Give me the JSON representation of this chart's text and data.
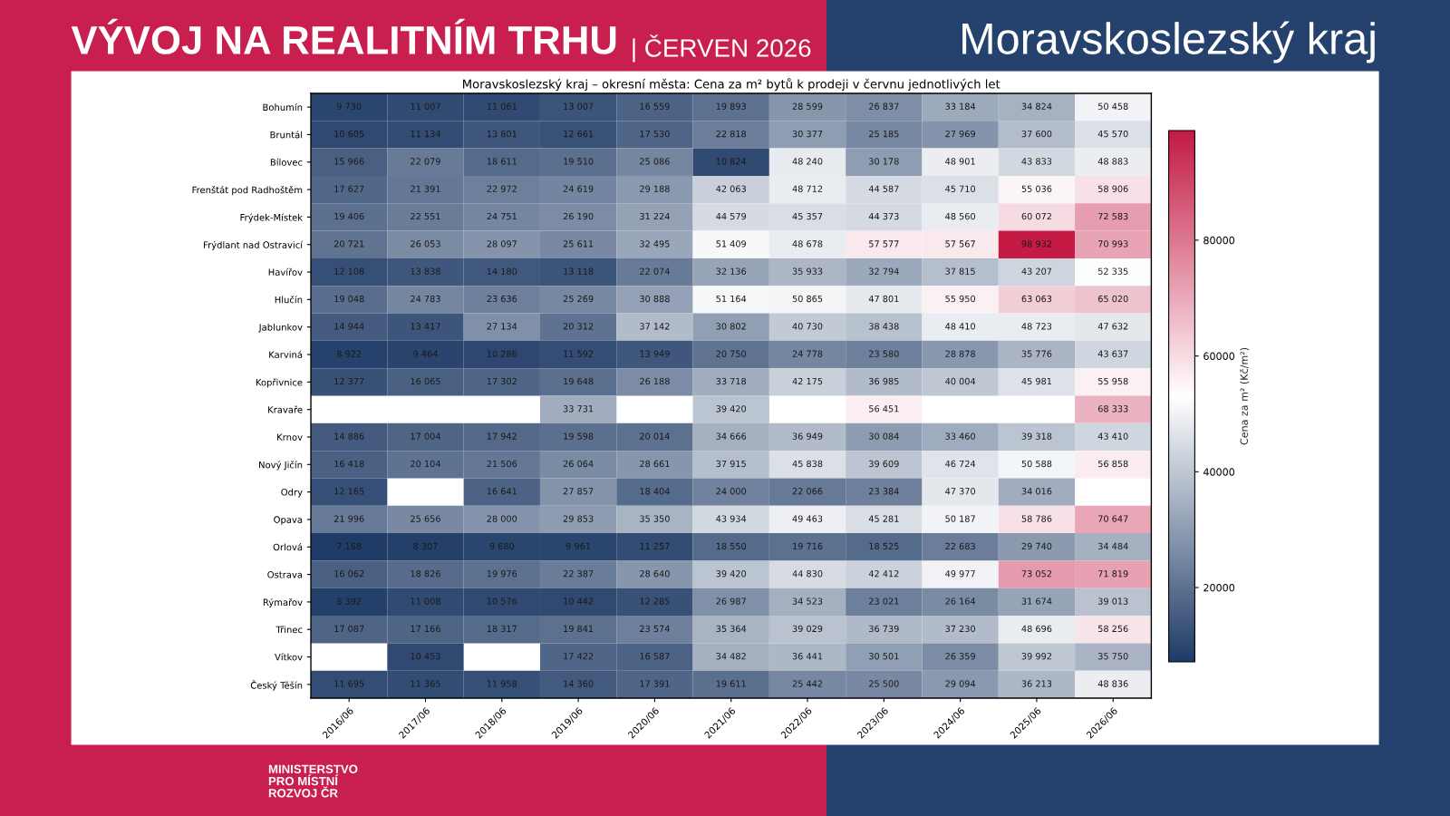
{
  "chart_data": {
    "type": "heatmap",
    "title": "Moravskoslezský kraj – okresní města: Cena za m² bytů k prodeji v červnu jednotlivých let",
    "clabel": "Cena za m² (Kč/m²)",
    "categories": [
      "2016/06",
      "2017/06",
      "2018/06",
      "2019/06",
      "2020/06",
      "2021/06",
      "2022/06",
      "2023/06",
      "2024/06",
      "2025/06",
      "2026/06"
    ],
    "y_categories": [
      "Bohumín",
      "Bruntál",
      "Bílovec",
      "Frenštát pod Radhoštěm",
      "Frýdek-Místek",
      "Frýdlant nad Ostravicí",
      "Havířov",
      "Hlučín",
      "Jablunkov",
      "Karviná",
      "Kopřivnice",
      "Kravaře",
      "Krnov",
      "Nový Jičín",
      "Odry",
      "Opava",
      "Orlová",
      "Ostrava",
      "Rýmařov",
      "Třinec",
      "Vítkov",
      "Český Těšín"
    ],
    "cells": [
      [
        9730,
        11007,
        11061,
        13007,
        16559,
        19893,
        28599,
        26837,
        33184,
        34824,
        50458
      ],
      [
        10605,
        11134,
        13801,
        12661,
        17530,
        22818,
        30377,
        25185,
        27969,
        37600,
        45570
      ],
      [
        15966,
        22079,
        18611,
        19510,
        25086,
        10824,
        48240,
        30178,
        48901,
        43833,
        48883
      ],
      [
        17627,
        21391,
        22972,
        24619,
        29188,
        42063,
        48712,
        44587,
        45710,
        55036,
        58906
      ],
      [
        19406,
        22551,
        24751,
        26190,
        31224,
        44579,
        45357,
        44373,
        48560,
        60072,
        72583
      ],
      [
        20721,
        26053,
        28097,
        25611,
        32495,
        51409,
        48678,
        57577,
        57567,
        98932,
        70993
      ],
      [
        12108,
        13838,
        14180,
        13118,
        22074,
        32136,
        35933,
        32794,
        37815,
        43207,
        52335
      ],
      [
        19048,
        24783,
        23636,
        25269,
        30888,
        51164,
        50865,
        47801,
        55950,
        63063,
        65020
      ],
      [
        14944,
        13417,
        27134,
        20312,
        37142,
        30802,
        40730,
        38438,
        48410,
        48723,
        47632
      ],
      [
        8922,
        9464,
        10286,
        11592,
        13949,
        20750,
        24778,
        23580,
        28878,
        35776,
        43637
      ],
      [
        12377,
        16065,
        17302,
        19648,
        26188,
        33718,
        42175,
        36985,
        40004,
        45981,
        55958
      ],
      [
        null,
        null,
        null,
        33731,
        null,
        39420,
        null,
        56451,
        null,
        null,
        68333
      ],
      [
        14886,
        17004,
        17942,
        19598,
        20014,
        34666,
        36949,
        30084,
        33460,
        39318,
        43410
      ],
      [
        16418,
        20104,
        21506,
        26064,
        28661,
        37915,
        45838,
        39609,
        46724,
        50588,
        56858
      ],
      [
        12165,
        null,
        16641,
        27857,
        18404,
        24000,
        22066,
        23384,
        47370,
        34016,
        null
      ],
      [
        21996,
        25656,
        28000,
        29853,
        35350,
        43934,
        49463,
        45281,
        50187,
        58786,
        70647
      ],
      [
        7168,
        8307,
        9680,
        9961,
        11257,
        18550,
        19716,
        18525,
        22683,
        29740,
        34484
      ],
      [
        16062,
        18826,
        19976,
        22387,
        28640,
        39420,
        44830,
        42412,
        49977,
        73052,
        71819
      ],
      [
        8392,
        11008,
        10576,
        10442,
        12285,
        26987,
        34523,
        23021,
        26164,
        31674,
        39013
      ],
      [
        17087,
        17166,
        18317,
        19841,
        23574,
        35364,
        39029,
        36739,
        37230,
        48696,
        58256
      ],
      [
        null,
        10453,
        null,
        17422,
        16587,
        34482,
        36441,
        30501,
        26359,
        39992,
        35750
      ],
      [
        11695,
        11365,
        11958,
        14360,
        17391,
        19611,
        25442,
        25500,
        29094,
        36213,
        48836
      ]
    ],
    "cell_labels": [
      [
        "9 730",
        "11 007",
        "11 061",
        "13 007",
        "16 559",
        "19 893",
        "28 599",
        "26 837",
        "33 184",
        "34 824",
        "50 458"
      ],
      [
        "10 605",
        "11 134",
        "13 801",
        "12 661",
        "17 530",
        "22 818",
        "30 377",
        "25 185",
        "27 969",
        "37 600",
        "45 570"
      ],
      [
        "15 966",
        "22 079",
        "18 611",
        "19 510",
        "25 086",
        "10 824",
        "48 240",
        "30 178",
        "48 901",
        "43 833",
        "48 883"
      ],
      [
        "17 627",
        "21 391",
        "22 972",
        "24 619",
        "29 188",
        "42 063",
        "48 712",
        "44 587",
        "45 710",
        "55 036",
        "58 906"
      ],
      [
        "19 406",
        "22 551",
        "24 751",
        "26 190",
        "31 224",
        "44 579",
        "45 357",
        "44 373",
        "48 560",
        "60 072",
        "72 583"
      ],
      [
        "20 721",
        "26 053",
        "28 097",
        "25 611",
        "32 495",
        "51 409",
        "48 678",
        "57 577",
        "57 567",
        "98 932",
        "70 993"
      ],
      [
        "12 108",
        "13 838",
        "14 180",
        "13 118",
        "22 074",
        "32 136",
        "35 933",
        "32 794",
        "37 815",
        "43 207",
        "52 335"
      ],
      [
        "19 048",
        "24 783",
        "23 636",
        "25 269",
        "30 888",
        "51 164",
        "50 865",
        "47 801",
        "55 950",
        "63 063",
        "65 020"
      ],
      [
        "14 944",
        "13 417",
        "27 134",
        "20 312",
        "37 142",
        "30 802",
        "40 730",
        "38 438",
        "48 410",
        "48 723",
        "47 632"
      ],
      [
        "8 922",
        "9 464",
        "10 286",
        "11 592",
        "13 949",
        "20 750",
        "24 778",
        "23 580",
        "28 878",
        "35 776",
        "43 637"
      ],
      [
        "12 377",
        "16 065",
        "17 302",
        "19 648",
        "26 188",
        "33 718",
        "42 175",
        "36 985",
        "40 004",
        "45 981",
        "55 958"
      ],
      [
        null,
        null,
        null,
        "33 731",
        null,
        "39 420",
        null,
        "56 451",
        null,
        null,
        "68 333"
      ],
      [
        "14 886",
        "17 004",
        "17 942",
        "19 598",
        "20 014",
        "34 666",
        "36 949",
        "30 084",
        "33 460",
        "39 318",
        "43 410"
      ],
      [
        "16 418",
        "20 104",
        "21 506",
        "26 064",
        "28 661",
        "37 915",
        "45 838",
        "39 609",
        "46 724",
        "50 588",
        "56 858"
      ],
      [
        "12 165",
        null,
        "16 641",
        "27 857",
        "18 404",
        "24 000",
        "22 066",
        "23 384",
        "47 370",
        "34 016",
        null
      ],
      [
        "21 996",
        "25 656",
        "28 000",
        "29 853",
        "35 350",
        "43 934",
        "49 463",
        "45 281",
        "50 187",
        "58 786",
        "70 647"
      ],
      [
        "7 168",
        "8 307",
        "9 680",
        "9 961",
        "11 257",
        "18 550",
        "19 716",
        "18 525",
        "22 683",
        "29 740",
        "34 484"
      ],
      [
        "16 062",
        "18 826",
        "19 976",
        "22 387",
        "28 640",
        "39 420",
        "44 830",
        "42 412",
        "49 977",
        "73 052",
        "71 819"
      ],
      [
        "8 392",
        "11 008",
        "10 576",
        "10 442",
        "12 285",
        "26 987",
        "34 523",
        "23 021",
        "26 164",
        "31 674",
        "39 013"
      ],
      [
        "17 087",
        "17 166",
        "18 317",
        "19 841",
        "23 574",
        "35 364",
        "39 029",
        "36 739",
        "37 230",
        "48 696",
        "58 256"
      ],
      [
        null,
        "10 453",
        null,
        "17 422",
        "16 587",
        "34 482",
        "36 441",
        "30 501",
        "26 359",
        "39 992",
        "35 750"
      ],
      [
        "11 695",
        "11 365",
        "11 958",
        "14 360",
        "17 391",
        "19 611",
        "25 442",
        "25 500",
        "29 094",
        "36 213",
        "48 836"
      ]
    ],
    "clim": [
      7168,
      98932
    ],
    "cticks": [
      20000,
      40000,
      60000,
      80000
    ],
    "annotations": [
      "VÝVOJ NA REALITNÍM TRHU",
      "| ČERVEN 2026",
      "Moravskoslezský kraj",
      "MINISTERSTVO\nPRO MÍSTNÍ\nROZVOJ ČR"
    ]
  }
}
